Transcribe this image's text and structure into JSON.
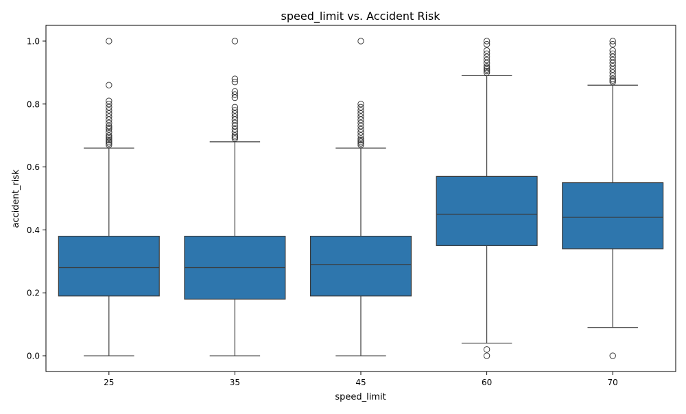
{
  "chart_data": {
    "type": "box",
    "title": "speed_limit vs. Accident Risk",
    "xlabel": "speed_limit",
    "ylabel": "accident_risk",
    "ylim": [
      -0.05,
      1.05
    ],
    "yticks": [
      "0.0",
      "0.2",
      "0.4",
      "0.6",
      "0.8",
      "1.0"
    ],
    "grid": false,
    "box_color": "#2e76ad",
    "line_color": "#3a3a3a",
    "categories": [
      "25",
      "35",
      "45",
      "60",
      "70"
    ],
    "boxes": [
      {
        "category": "25",
        "whisker_low": 0.0,
        "q1": 0.19,
        "median": 0.28,
        "q3": 0.38,
        "whisker_high": 0.66,
        "outliers": [
          0.67,
          0.675,
          0.68,
          0.685,
          0.69,
          0.695,
          0.7,
          0.71,
          0.72,
          0.725,
          0.73,
          0.74,
          0.75,
          0.76,
          0.77,
          0.78,
          0.79,
          0.8,
          0.81,
          0.86,
          1.0
        ]
      },
      {
        "category": "35",
        "whisker_low": 0.0,
        "q1": 0.18,
        "median": 0.28,
        "q3": 0.38,
        "whisker_high": 0.68,
        "outliers": [
          0.69,
          0.695,
          0.7,
          0.71,
          0.72,
          0.73,
          0.74,
          0.75,
          0.76,
          0.77,
          0.78,
          0.79,
          0.82,
          0.83,
          0.84,
          0.87,
          0.88,
          1.0
        ]
      },
      {
        "category": "45",
        "whisker_low": 0.0,
        "q1": 0.19,
        "median": 0.29,
        "q3": 0.38,
        "whisker_high": 0.66,
        "outliers": [
          0.67,
          0.675,
          0.68,
          0.685,
          0.69,
          0.7,
          0.71,
          0.72,
          0.73,
          0.74,
          0.75,
          0.76,
          0.77,
          0.78,
          0.79,
          0.8,
          1.0
        ]
      },
      {
        "category": "60",
        "whisker_low": 0.04,
        "q1": 0.35,
        "median": 0.45,
        "q3": 0.57,
        "whisker_high": 0.89,
        "outliers": [
          0.0,
          0.02,
          0.9,
          0.905,
          0.91,
          0.915,
          0.92,
          0.93,
          0.94,
          0.95,
          0.96,
          0.97,
          0.99,
          1.0
        ]
      },
      {
        "category": "70",
        "whisker_low": 0.09,
        "q1": 0.34,
        "median": 0.44,
        "q3": 0.55,
        "whisker_high": 0.86,
        "outliers": [
          0.0,
          0.87,
          0.875,
          0.88,
          0.89,
          0.9,
          0.91,
          0.92,
          0.93,
          0.94,
          0.95,
          0.96,
          0.97,
          0.99,
          1.0
        ]
      }
    ]
  }
}
